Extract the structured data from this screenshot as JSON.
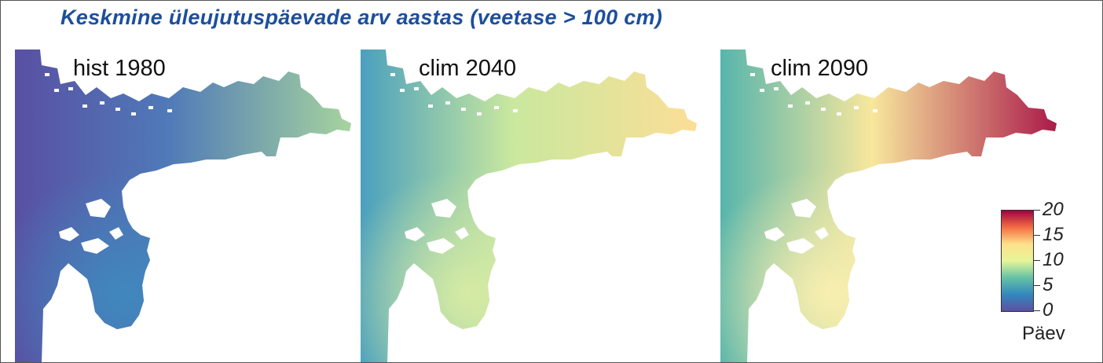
{
  "title": "Keskmine üleujutuspäevade arv aastas (veetase > 100 cm)",
  "panels": [
    {
      "label": "hist 1980",
      "colors": {
        "west": "#5950a3",
        "mid": "#4f79b8",
        "east": "#a6d49e",
        "south": "#3f89be"
      }
    },
    {
      "label": "clim 2040",
      "colors": {
        "west": "#4aa0be",
        "mid": "#c9e89e",
        "east": "#fcde97",
        "south": "#d8eca4"
      }
    },
    {
      "label": "clim 2090",
      "colors": {
        "west": "#56b5ac",
        "mid": "#f8e79d",
        "east": "#ab1a4a",
        "south": "#faf0b0"
      }
    }
  ],
  "legend": {
    "unit": "Päev",
    "ticks": [
      "20",
      "15",
      "10",
      "5",
      "0"
    ],
    "gradient": [
      "#9e0142",
      "#f46d43",
      "#fee08b",
      "#e6f598",
      "#66c2a5",
      "#3288bd",
      "#5e4fa2"
    ]
  }
}
